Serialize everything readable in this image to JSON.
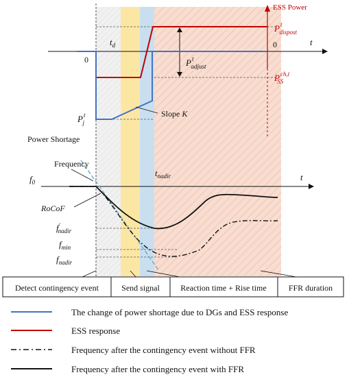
{
  "colors": {
    "grey_band": "#ececec",
    "yellow_band": "#fbe7a3",
    "blue_band": "#c9dff0",
    "salmon_band": "#f8ddd0",
    "blue_line": "#4472c4",
    "red_line": "#c00000",
    "black_line": "#111111"
  },
  "top": {
    "ess_power_label": "ESS Power",
    "t_label": "t",
    "t_d": "t",
    "t_d_sub": "d",
    "zero_left": "0",
    "zero_right": "0",
    "p_dispost": "P",
    "p_dispost_sup": "t",
    "p_dispost_sub": "dispost",
    "p_adjust": "P",
    "p_adjust_sup": "t",
    "p_adjust_sub": "adjust",
    "p_ss": "P",
    "p_ss_sup": "ch,t",
    "p_ss_sub": "SS",
    "p_j": "P",
    "p_j_sup": "t",
    "p_j_sub": "j",
    "slope_k": "Slope",
    "slope_k_var": "K",
    "power_shortage": "Power Shortage"
  },
  "bottom": {
    "frequency_label": "Frequency",
    "f0": "f",
    "f0_sub": "0",
    "t_label": "t",
    "t_nadir": "t",
    "t_nadir_sub": "nadir",
    "rocof": "RoCoF",
    "f_nadir_prime": "f",
    "f_nadir_prime_sup": "′",
    "f_nadir_prime_sub": "nadir",
    "f_min": "f",
    "f_min_sub": "min",
    "f_nadir": "f",
    "f_nadir_sub": "nadir"
  },
  "phases": [
    "Detect contingency event",
    "Send signal",
    "Reaction time + Rise time",
    "FFR duration"
  ],
  "legend": [
    {
      "style": "blue-solid",
      "label": "The change of power shortage due to DGs and ESS response"
    },
    {
      "style": "red-solid",
      "label": "ESS response"
    },
    {
      "style": "black-dashdot",
      "label": "Frequency after the contingency event without FFR"
    },
    {
      "style": "black-solid",
      "label": "Frequency after the contingency event with FFR"
    }
  ]
}
